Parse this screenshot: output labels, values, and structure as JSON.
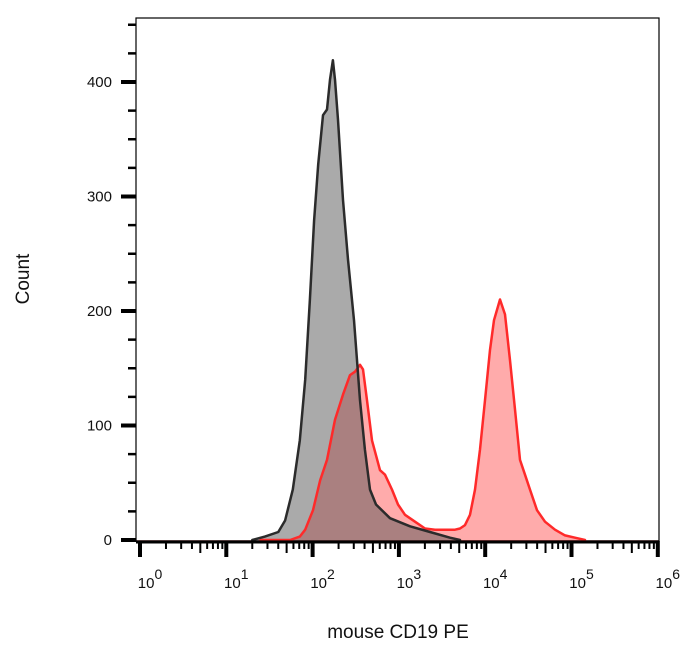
{
  "chart_data": {
    "type": "area",
    "xlabel": "mouse CD19 PE",
    "ylabel": "Count",
    "x_scale": "log",
    "xlim": [
      1,
      1000000
    ],
    "ylim": [
      0,
      456
    ],
    "grid": false,
    "x_ticks": [
      {
        "value": 1,
        "base": "10",
        "exp": "0"
      },
      {
        "value": 10,
        "base": "10",
        "exp": "1"
      },
      {
        "value": 100,
        "base": "10",
        "exp": "2"
      },
      {
        "value": 1000,
        "base": "10",
        "exp": "3"
      },
      {
        "value": 10000,
        "base": "10",
        "exp": "4"
      },
      {
        "value": 100000,
        "base": "10",
        "exp": "5"
      },
      {
        "value": 1000000,
        "base": "10",
        "exp": "6"
      }
    ],
    "y_ticks": [
      "0",
      "100",
      "200",
      "300",
      "400"
    ],
    "series": [
      {
        "color": "#ff2a2a",
        "fill": "#ff0000",
        "x": [
          25,
          55,
          71,
          82,
          101,
          122,
          147,
          182,
          225,
          271,
          310,
          354,
          384,
          427,
          488,
          604,
          690,
          832,
          977,
          1178,
          1538,
          2005,
          2618,
          3420,
          4467,
          5100,
          5834,
          6668,
          7620,
          8710,
          9950,
          11370,
          12650,
          14830,
          16940,
          19360,
          22130,
          25290,
          28910,
          33040,
          39810,
          49300,
          64400,
          84100,
          109900,
          143300
        ],
        "y": [
          0,
          0,
          3,
          9,
          26,
          52,
          70,
          105,
          127,
          144,
          147,
          153,
          149,
          122,
          87,
          61,
          57,
          44,
          31,
          22,
          16,
          10,
          9,
          9,
          9,
          10,
          13,
          22,
          44,
          79,
          122,
          166,
          192,
          210,
          197,
          157,
          114,
          70,
          57,
          44,
          26,
          16,
          9,
          4,
          2,
          0
        ]
      },
      {
        "color": "#2b2b2b",
        "fill": "#555555",
        "x": [
          20,
          28,
          40,
          48,
          59,
          71,
          82,
          93,
          104,
          116,
          132,
          147,
          159,
          172,
          182,
          197,
          225,
          257,
          302,
          327,
          354,
          404,
          462,
          543,
          789,
          1345,
          2291,
          3909,
          5100
        ],
        "y": [
          0,
          3,
          7,
          17,
          44,
          87,
          140,
          210,
          279,
          328,
          371,
          376,
          402,
          419,
          402,
          367,
          297,
          245,
          192,
          157,
          122,
          79,
          44,
          31,
          19,
          12,
          7,
          2,
          0
        ]
      }
    ]
  }
}
